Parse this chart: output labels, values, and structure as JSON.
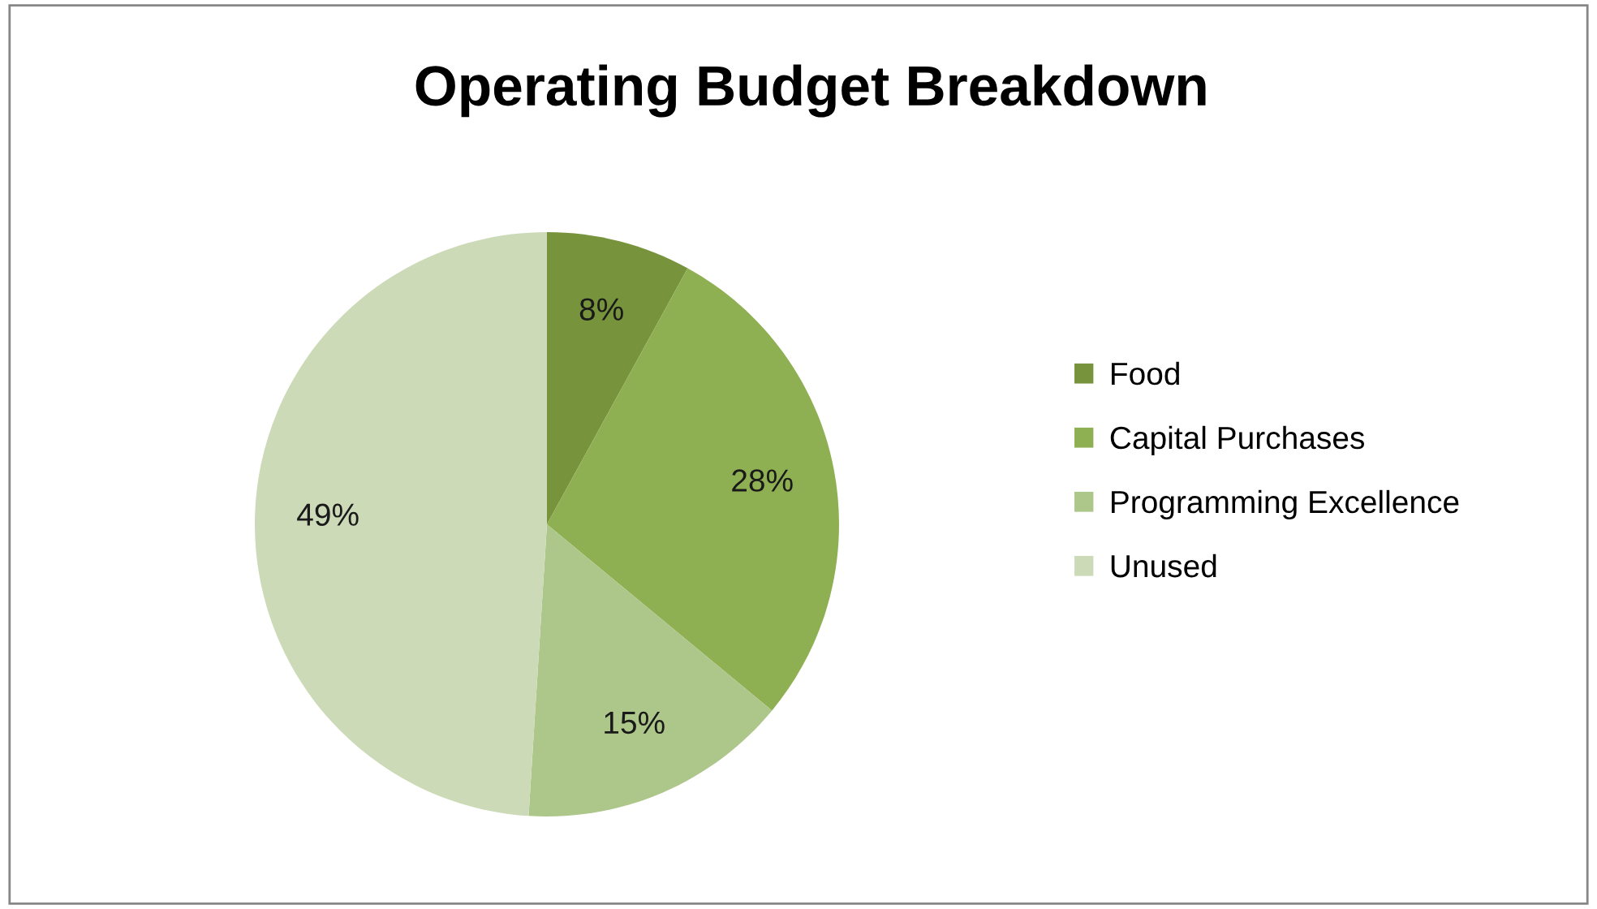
{
  "chart_data": {
    "type": "pie",
    "title": "Operating Budget Breakdown",
    "categories": [
      "Food",
      "Capital Purchases",
      "Programming Excellence",
      "Unused"
    ],
    "values": [
      8,
      28,
      15,
      49
    ],
    "colors": [
      "#77933c",
      "#8fb052",
      "#adc68a",
      "#cddab8"
    ],
    "value_labels": [
      "8%",
      "28%",
      "15%",
      "49%"
    ],
    "legend": "right"
  }
}
